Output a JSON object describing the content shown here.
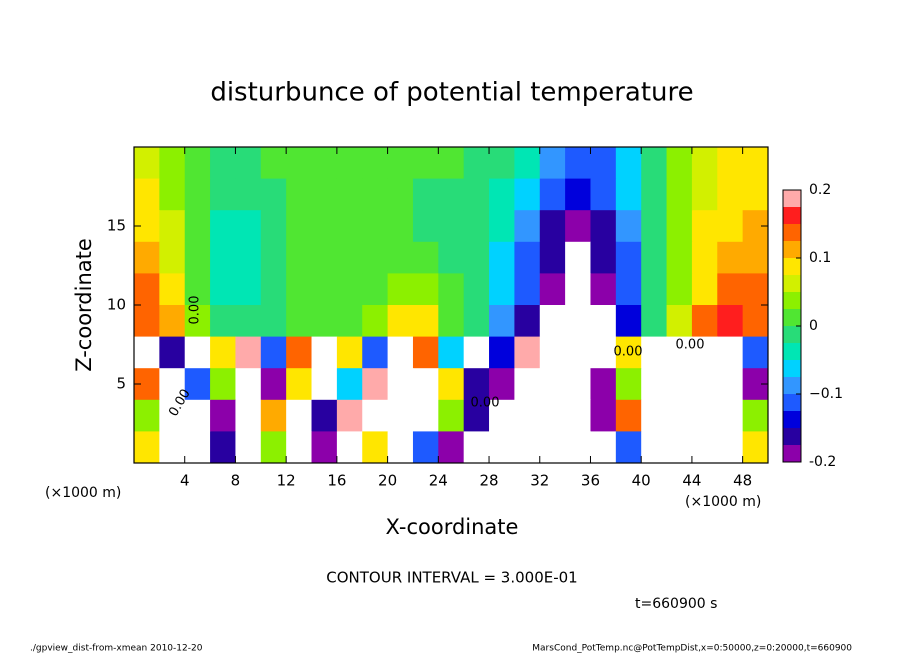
{
  "chart_data": {
    "type": "heatmap",
    "title": "disturbunce of potential temperature",
    "x_label": "X-coordinate",
    "y_label": "Z-coordinate",
    "x_unit_label": "(×1000 m)",
    "x_unit_label_right": "(×1000 m)",
    "contour_interval": "CONTOUR INTERVAL = 3.000E-01",
    "time_label": "t=660900 s",
    "footer_left": "./gpview_dist-from-xmean  2010-12-20",
    "footer_right": "MarsCond_PotTemp.nc@PotTempDist,x=0:50000,z=0:20000,t=660900",
    "annotations": [
      "0.00",
      "0.00",
      "0.00",
      "0.00",
      "0.00"
    ],
    "xlim": [
      0,
      50
    ],
    "ylim": [
      0,
      20
    ],
    "xticks": [
      4,
      8,
      12,
      16,
      20,
      24,
      28,
      32,
      36,
      40,
      44,
      48
    ],
    "yticks": [
      5,
      10,
      15
    ],
    "x": [
      1,
      3,
      5,
      7,
      9,
      11,
      13,
      15,
      17,
      19,
      21,
      23,
      25,
      27,
      29,
      31,
      33,
      35,
      37,
      39,
      41,
      43,
      45,
      47,
      49
    ],
    "y": [
      19,
      17,
      15,
      13,
      11,
      9,
      7,
      5,
      3,
      1
    ],
    "values": [
      [
        0.07,
        0.04,
        0.02,
        0.0,
        0.0,
        0.01,
        0.01,
        0.01,
        0.01,
        0.01,
        0.01,
        0.01,
        0.01,
        0.0,
        -0.02,
        -0.04,
        -0.08,
        -0.1,
        -0.1,
        -0.06,
        -0.02,
        0.03,
        0.06,
        0.08,
        0.09
      ],
      [
        0.09,
        0.05,
        0.01,
        -0.02,
        -0.02,
        0.0,
        0.01,
        0.01,
        0.01,
        0.01,
        0.01,
        0.0,
        0.0,
        -0.01,
        -0.03,
        -0.07,
        -0.11,
        -0.13,
        -0.11,
        -0.07,
        -0.02,
        0.03,
        0.07,
        0.09,
        0.1
      ],
      [
        0.1,
        0.06,
        0.01,
        -0.03,
        -0.03,
        -0.01,
        0.01,
        0.01,
        0.01,
        0.01,
        0.01,
        0.0,
        0.0,
        -0.01,
        -0.04,
        -0.09,
        -0.15,
        -0.19,
        -0.15,
        -0.09,
        -0.02,
        0.04,
        0.08,
        0.1,
        0.11
      ],
      [
        0.11,
        0.07,
        0.01,
        -0.04,
        -0.04,
        -0.01,
        0.01,
        0.01,
        0.01,
        0.01,
        0.02,
        0.01,
        0.0,
        -0.01,
        -0.05,
        -0.1,
        -0.17,
        -0.25,
        -0.17,
        -0.1,
        -0.02,
        0.04,
        0.09,
        0.12,
        0.12
      ],
      [
        0.13,
        0.08,
        0.02,
        -0.04,
        -0.04,
        -0.01,
        0.01,
        0.01,
        0.01,
        0.02,
        0.05,
        0.04,
        0.01,
        -0.01,
        -0.06,
        -0.12,
        -0.2,
        -0.25,
        -0.2,
        -0.11,
        -0.02,
        0.05,
        0.1,
        0.14,
        0.14
      ],
      [
        0.15,
        0.11,
        0.04,
        0.0,
        -0.02,
        0.0,
        0.01,
        0.01,
        0.02,
        0.05,
        0.1,
        0.08,
        0.02,
        -0.02,
        -0.08,
        -0.15,
        -0.25,
        -0.25,
        -0.25,
        -0.13,
        -0.02,
        0.07,
        0.13,
        0.16,
        0.15
      ],
      [
        0.3,
        -0.15,
        0.3,
        0.1,
        0.2,
        -0.1,
        0.15,
        0.3,
        0.08,
        -0.12,
        0.3,
        0.15,
        -0.05,
        0.3,
        -0.14,
        0.2,
        -0.3,
        0.3,
        -0.3,
        0.1,
        -0.3,
        -0.3,
        -0.25,
        -0.3,
        -0.1
      ],
      [
        0.15,
        0.3,
        -0.12,
        0.05,
        0.3,
        -0.18,
        0.1,
        0.3,
        -0.05,
        0.2,
        0.3,
        0.3,
        0.1,
        -0.15,
        -0.2,
        0.3,
        -0.25,
        0.3,
        -0.2,
        0.05,
        -0.3,
        -0.3,
        -0.3,
        -0.3,
        -0.2
      ],
      [
        0.05,
        0.3,
        0.3,
        -0.2,
        -0.25,
        0.12,
        0.3,
        -0.15,
        0.2,
        -0.25,
        0.3,
        0.3,
        0.05,
        -0.15,
        0.3,
        0.3,
        -0.3,
        0.3,
        -0.2,
        0.15,
        -0.3,
        -0.3,
        -0.3,
        -0.3,
        0.05
      ],
      [
        0.1,
        0.3,
        0.3,
        -0.15,
        0.3,
        0.05,
        0.3,
        -0.2,
        0.3,
        0.1,
        0.3,
        -0.1,
        -0.2,
        0.3,
        0.3,
        -0.3,
        0.3,
        -0.3,
        0.3,
        -0.1,
        -0.3,
        -0.3,
        -0.3,
        -0.3,
        0.1
      ]
    ],
    "clim": [
      -0.2,
      0.2
    ],
    "cticks": [
      -0.2,
      {
        "value": -0.1,
        "label": "−0.1"
      },
      0,
      0.1,
      0.2
    ],
    "clevels": [
      -0.2,
      -0.175,
      -0.15,
      -0.125,
      -0.1,
      -0.075,
      -0.05,
      -0.025,
      0,
      0.025,
      0.05,
      0.075,
      0.1,
      0.125,
      0.15,
      0.175,
      0.2
    ],
    "colors": [
      "#8c00aa",
      "#2800a0",
      "#0000dc",
      "#1e5aff",
      "#3296ff",
      "#00d2ff",
      "#00e6b4",
      "#28dc78",
      "#50e632",
      "#8cf000",
      "#d2f000",
      "#ffe600",
      "#ffaa00",
      "#ff6400",
      "#ff1e1e",
      "#ffaaaa"
    ],
    "out_of_range_color": "#ffffff"
  }
}
